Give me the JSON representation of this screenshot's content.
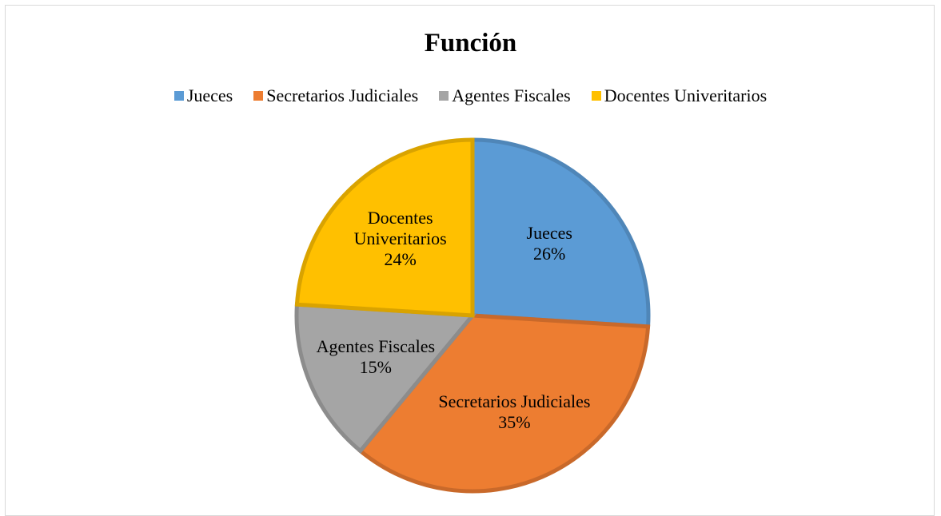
{
  "chart_data": {
    "type": "pie",
    "title": "Función",
    "categories": [
      "Jueces",
      "Secretarios Judiciales",
      "Agentes Fiscales",
      "Docentes Univeritarios"
    ],
    "values": [
      26,
      35,
      15,
      24
    ],
    "value_labels": [
      "26%",
      "35%",
      "15%",
      "24%"
    ],
    "colors": [
      "#5b9bd5",
      "#ed7d31",
      "#a5a5a5",
      "#ffc000"
    ],
    "edge_colors": [
      "#4f86b8",
      "#c9692a",
      "#8c8c8c",
      "#d9a300"
    ],
    "legend": "top"
  }
}
